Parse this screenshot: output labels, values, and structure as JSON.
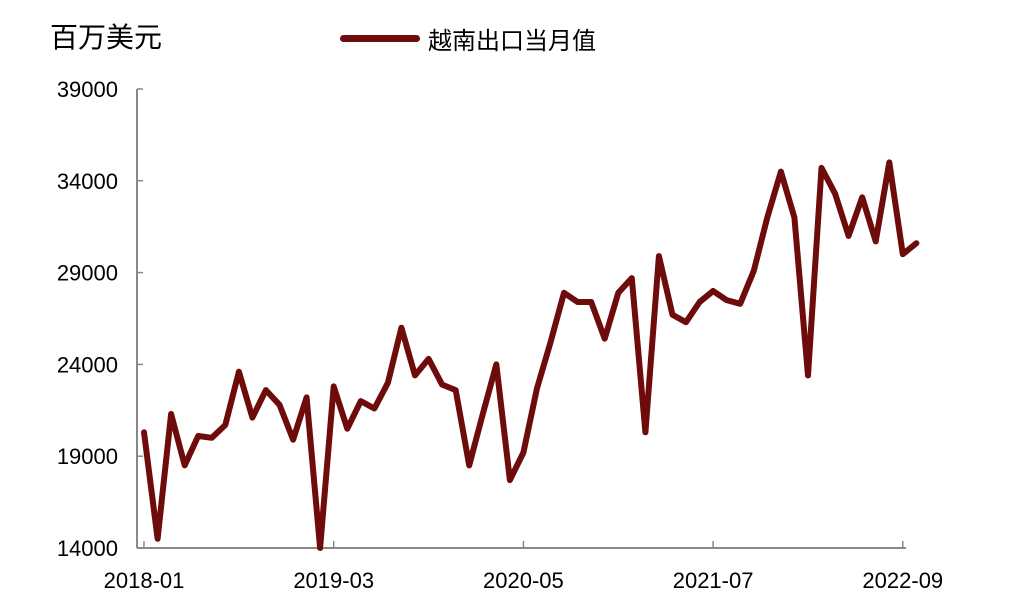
{
  "chart_data": {
    "type": "line",
    "unit_label": "百万美元",
    "series": [
      {
        "name": "越南出口当月值",
        "color": "#6e0b0b",
        "x": [
          "2018-01",
          "2018-02",
          "2018-03",
          "2018-04",
          "2018-05",
          "2018-06",
          "2018-07",
          "2018-08",
          "2018-09",
          "2018-10",
          "2018-11",
          "2018-12",
          "2019-01",
          "2019-02",
          "2019-03",
          "2019-04",
          "2019-05",
          "2019-06",
          "2019-07",
          "2019-08",
          "2019-09",
          "2019-10",
          "2019-11",
          "2019-12",
          "2020-01",
          "2020-02",
          "2020-03",
          "2020-04",
          "2020-05",
          "2020-06",
          "2020-07",
          "2020-08",
          "2020-09",
          "2020-10",
          "2020-11",
          "2020-12",
          "2021-01",
          "2021-02",
          "2021-03",
          "2021-04",
          "2021-05",
          "2021-06",
          "2021-07",
          "2021-08",
          "2021-09",
          "2021-10",
          "2021-11",
          "2021-12",
          "2022-01",
          "2022-02",
          "2022-03",
          "2022-04",
          "2022-05",
          "2022-06",
          "2022-07",
          "2022-08",
          "2022-09",
          "2022-10"
        ],
        "values": [
          20300,
          14500,
          21300,
          18500,
          20100,
          20000,
          20700,
          23600,
          21100,
          22600,
          21800,
          19900,
          22200,
          14000,
          22800,
          20500,
          22000,
          21600,
          23000,
          26000,
          23400,
          24300,
          22900,
          22600,
          18500,
          21300,
          24000,
          17700,
          19200,
          22700,
          25200,
          27900,
          27400,
          27400,
          25400,
          27900,
          28700,
          20300,
          29900,
          26700,
          26300,
          27400,
          28000,
          27500,
          27300,
          29100,
          32000,
          34500,
          32000,
          23400,
          34700,
          33300,
          31000,
          33100,
          30700,
          35000,
          30000,
          30600
        ]
      }
    ],
    "x_ticks": [
      "2018-01",
      "2019-03",
      "2020-05",
      "2021-07",
      "2022-09"
    ],
    "y_ticks": [
      14000,
      19000,
      24000,
      29000,
      34000,
      39000
    ],
    "ylim": [
      14000,
      39000
    ],
    "grid": false,
    "legend_position": "top-center"
  }
}
